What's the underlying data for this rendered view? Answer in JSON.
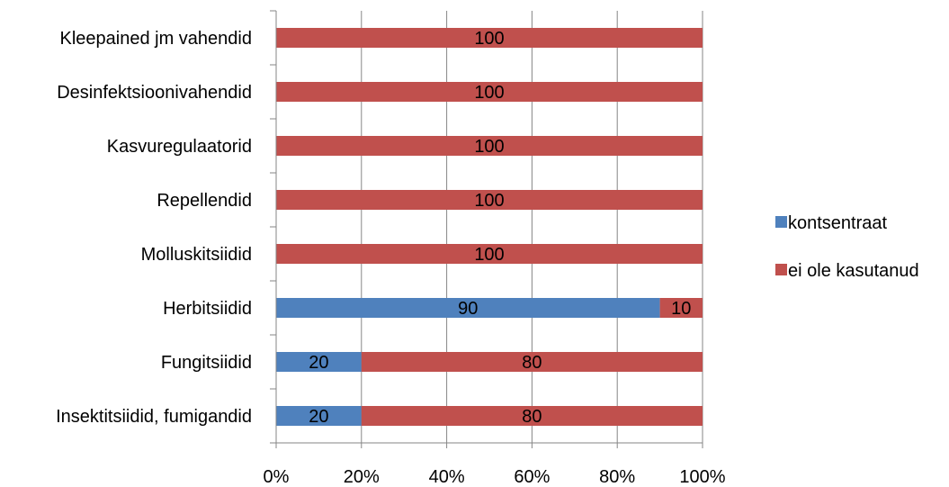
{
  "chart_data": {
    "type": "bar",
    "orientation": "horizontal",
    "stacked": "percent",
    "categories": [
      "Insektitsiidid, fumigandid",
      "Fungitsiidid",
      "Herbitsiidid",
      "Molluskitsiidid",
      "Repellendid",
      "Kasvuregulaatorid",
      "Desinfektsioonivahendid",
      "Kleepained jm vahendid"
    ],
    "series": [
      {
        "name": "kontsentraat",
        "color": "#4f81bd",
        "values": [
          20,
          20,
          90,
          0,
          0,
          0,
          0,
          0
        ]
      },
      {
        "name": "ei ole kasutanud",
        "color": "#c0504d",
        "values": [
          80,
          80,
          10,
          100,
          100,
          100,
          100,
          100
        ]
      }
    ],
    "x_ticks": [
      "0%",
      "20%",
      "40%",
      "60%",
      "80%",
      "100%"
    ],
    "xlim": [
      0,
      100
    ],
    "grid": "vertical",
    "legend_position": "right",
    "title": "",
    "xlabel": "",
    "ylabel": ""
  }
}
